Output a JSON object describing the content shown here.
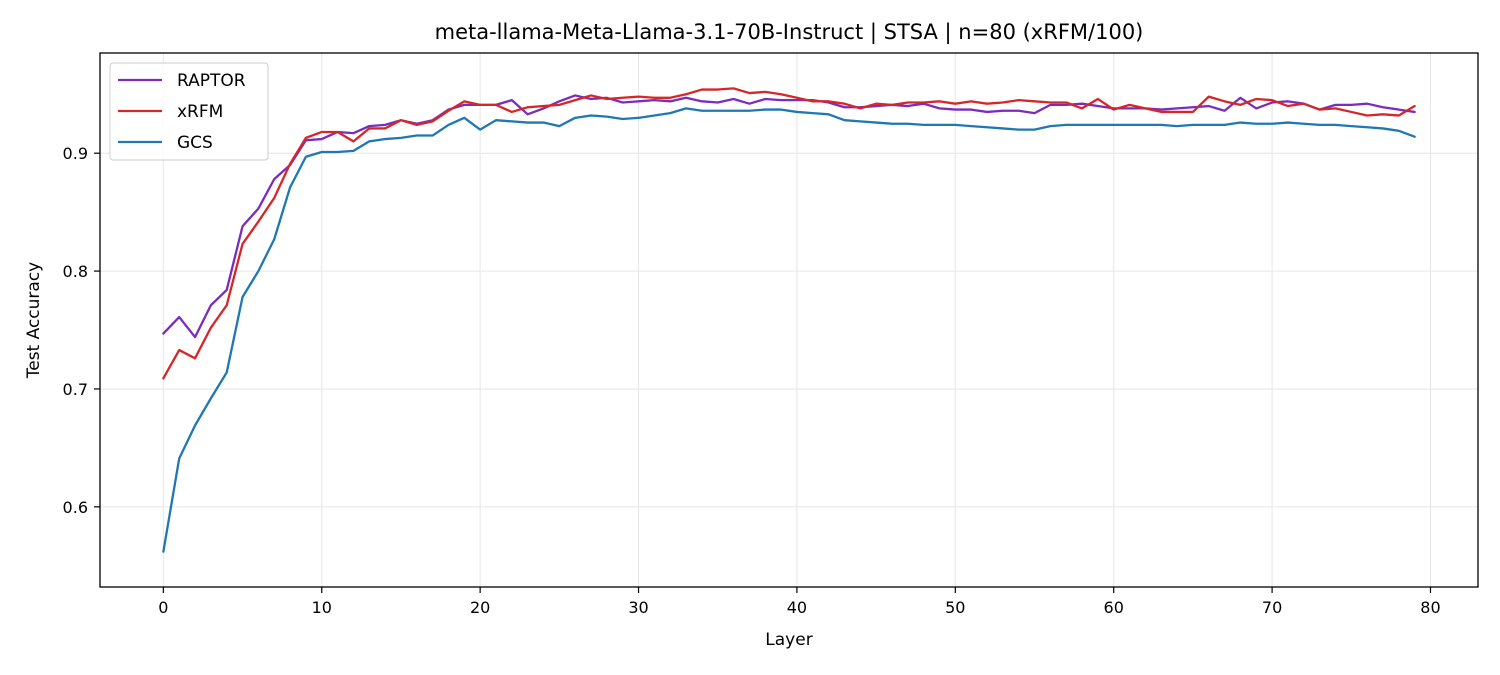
{
  "chart_data": {
    "type": "line",
    "title": "meta-llama-Meta-Llama-3.1-70B-Instruct | STSA | n=80 (xRFM/100)",
    "xlabel": "Layer",
    "ylabel": "Test Accuracy",
    "xlim": [
      -4,
      83
    ],
    "ylim": [
      0.532,
      0.985
    ],
    "xticks": [
      0,
      10,
      20,
      30,
      40,
      50,
      60,
      70,
      80
    ],
    "yticks": [
      0.6,
      0.7,
      0.8,
      0.9
    ],
    "ytick_labels": [
      "0.6",
      "0.7",
      "0.8",
      "0.9"
    ],
    "grid": true,
    "legend_position": "top-left",
    "x": [
      0,
      1,
      2,
      3,
      4,
      5,
      6,
      7,
      8,
      9,
      10,
      11,
      12,
      13,
      14,
      15,
      16,
      17,
      18,
      19,
      20,
      21,
      22,
      23,
      24,
      25,
      26,
      27,
      28,
      29,
      30,
      31,
      32,
      33,
      34,
      35,
      36,
      37,
      38,
      39,
      40,
      41,
      42,
      43,
      44,
      45,
      46,
      47,
      48,
      49,
      50,
      51,
      52,
      53,
      54,
      55,
      56,
      57,
      58,
      59,
      60,
      61,
      62,
      63,
      64,
      65,
      66,
      67,
      68,
      69,
      70,
      71,
      72,
      73,
      74,
      75,
      76,
      77,
      78,
      79
    ],
    "series": [
      {
        "name": "RAPTOR",
        "color": "#7b2cbf",
        "values": [
          0.747,
          0.761,
          0.744,
          0.771,
          0.784,
          0.838,
          0.853,
          0.878,
          0.89,
          0.911,
          0.912,
          0.918,
          0.917,
          0.923,
          0.924,
          0.928,
          0.925,
          0.928,
          0.937,
          0.941,
          0.941,
          0.941,
          0.945,
          0.933,
          0.938,
          0.944,
          0.949,
          0.946,
          0.947,
          0.943,
          0.944,
          0.945,
          0.944,
          0.947,
          0.944,
          0.943,
          0.946,
          0.942,
          0.946,
          0.945,
          0.945,
          0.945,
          0.943,
          0.939,
          0.939,
          0.94,
          0.941,
          0.94,
          0.942,
          0.938,
          0.937,
          0.937,
          0.935,
          0.936,
          0.936,
          0.934,
          0.941,
          0.941,
          0.942,
          0.94,
          0.938,
          0.938,
          0.938,
          0.937,
          0.938,
          0.939,
          0.94,
          0.936,
          0.947,
          0.938,
          0.943,
          0.944,
          0.942,
          0.937,
          0.941,
          0.941,
          0.942,
          0.939,
          0.937,
          0.935
        ]
      },
      {
        "name": "xRFM",
        "color": "#d62728",
        "values": [
          0.709,
          0.733,
          0.726,
          0.752,
          0.771,
          0.823,
          0.842,
          0.862,
          0.891,
          0.913,
          0.918,
          0.918,
          0.91,
          0.921,
          0.921,
          0.928,
          0.924,
          0.927,
          0.936,
          0.944,
          0.941,
          0.941,
          0.935,
          0.939,
          0.94,
          0.941,
          0.945,
          0.949,
          0.946,
          0.947,
          0.948,
          0.947,
          0.947,
          0.95,
          0.954,
          0.954,
          0.955,
          0.951,
          0.952,
          0.95,
          0.947,
          0.944,
          0.944,
          0.942,
          0.938,
          0.942,
          0.941,
          0.943,
          0.943,
          0.944,
          0.942,
          0.944,
          0.942,
          0.943,
          0.945,
          0.944,
          0.943,
          0.943,
          0.938,
          0.946,
          0.937,
          0.941,
          0.938,
          0.935,
          0.935,
          0.935,
          0.948,
          0.944,
          0.941,
          0.946,
          0.945,
          0.94,
          0.942,
          0.937,
          0.938,
          0.935,
          0.932,
          0.933,
          0.932,
          0.94
        ]
      },
      {
        "name": "GCS",
        "color": "#1f77b4",
        "values": [
          0.562,
          0.641,
          0.669,
          0.692,
          0.714,
          0.778,
          0.8,
          0.827,
          0.871,
          0.897,
          0.901,
          0.901,
          0.902,
          0.91,
          0.912,
          0.913,
          0.915,
          0.915,
          0.924,
          0.93,
          0.92,
          0.928,
          0.927,
          0.926,
          0.926,
          0.923,
          0.93,
          0.932,
          0.931,
          0.929,
          0.93,
          0.932,
          0.934,
          0.938,
          0.936,
          0.936,
          0.936,
          0.936,
          0.937,
          0.937,
          0.935,
          0.934,
          0.933,
          0.928,
          0.927,
          0.926,
          0.925,
          0.925,
          0.924,
          0.924,
          0.924,
          0.923,
          0.922,
          0.921,
          0.92,
          0.92,
          0.923,
          0.924,
          0.924,
          0.924,
          0.924,
          0.924,
          0.924,
          0.924,
          0.923,
          0.924,
          0.924,
          0.924,
          0.926,
          0.925,
          0.925,
          0.926,
          0.925,
          0.924,
          0.924,
          0.923,
          0.922,
          0.921,
          0.919,
          0.914
        ]
      }
    ]
  }
}
